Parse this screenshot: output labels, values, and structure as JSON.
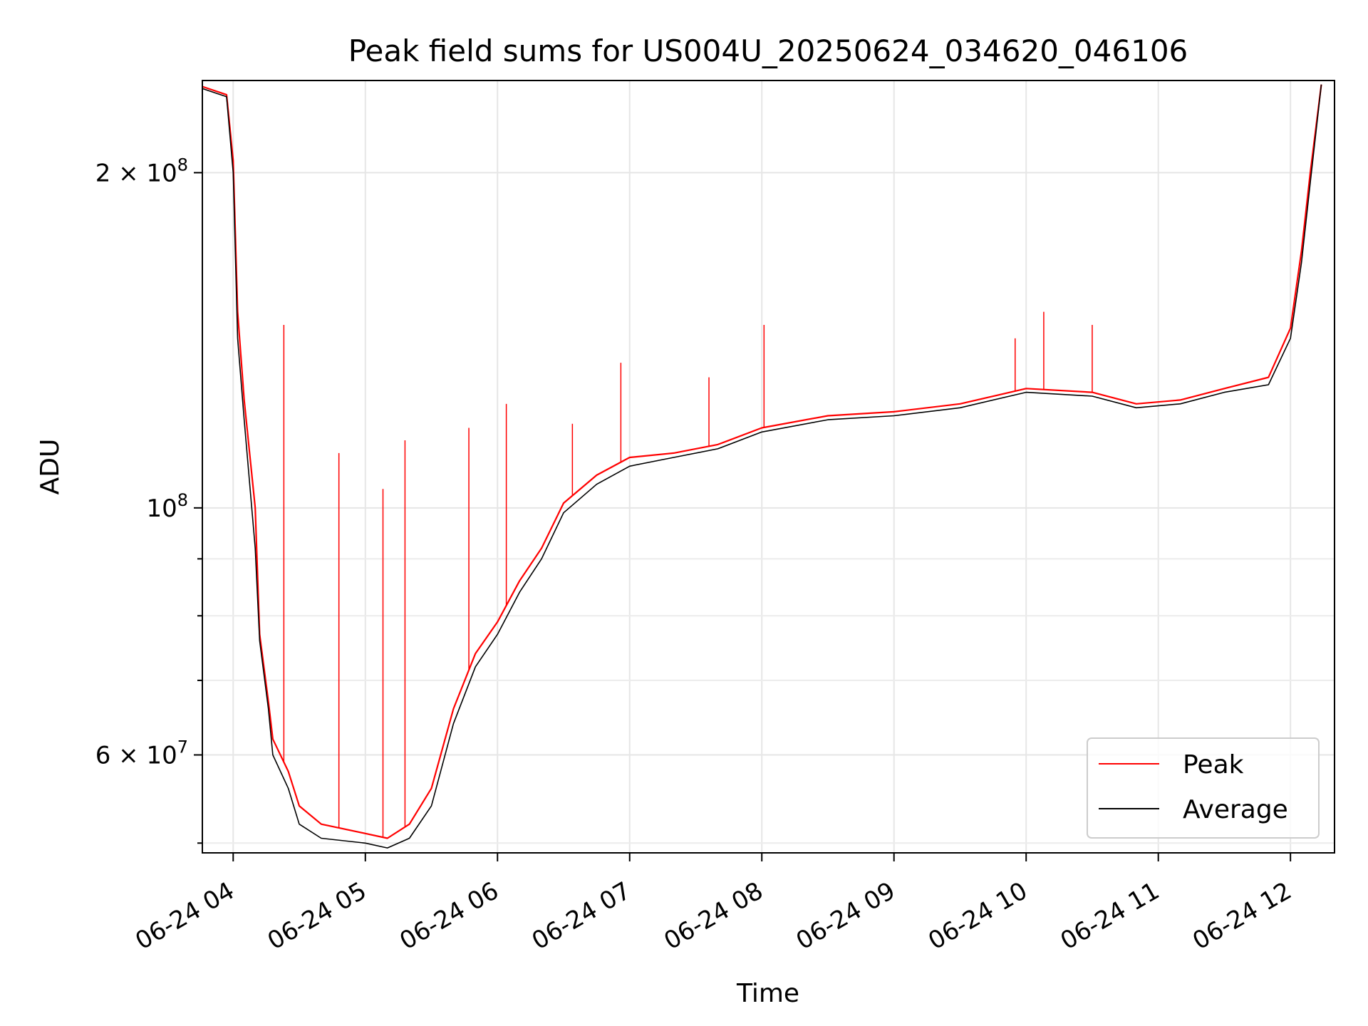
{
  "chart_data": {
    "type": "line",
    "title": "Peak field sums for US004U_20250624_034620_046106",
    "xlabel": "Time",
    "ylabel": "ADU",
    "x_scale": "time",
    "y_scale": "log",
    "xlim": [
      "2025-06-24 03:46",
      "2025-06-24 12:20"
    ],
    "ylim": [
      49000000,
      242000000
    ],
    "grid": true,
    "legend_position": "lower-right",
    "x_ticks": [
      {
        "value": "2025-06-24 04:00",
        "label": "06-24 04"
      },
      {
        "value": "2025-06-24 05:00",
        "label": "06-24 05"
      },
      {
        "value": "2025-06-24 06:00",
        "label": "06-24 06"
      },
      {
        "value": "2025-06-24 07:00",
        "label": "06-24 07"
      },
      {
        "value": "2025-06-24 08:00",
        "label": "06-24 08"
      },
      {
        "value": "2025-06-24 09:00",
        "label": "06-24 09"
      },
      {
        "value": "2025-06-24 10:00",
        "label": "06-24 10"
      },
      {
        "value": "2025-06-24 11:00",
        "label": "06-24 11"
      },
      {
        "value": "2025-06-24 12:00",
        "label": "06-24 12"
      }
    ],
    "y_ticks": [
      {
        "value": 60000000,
        "base": "6 × 10",
        "exp": "7"
      },
      {
        "value": 100000000,
        "base": "10",
        "exp": "8"
      },
      {
        "value": 200000000,
        "base": "2 × 10",
        "exp": "8"
      }
    ],
    "y_minor_ticks": [
      50000000,
      70000000,
      80000000,
      90000000
    ],
    "series": [
      {
        "name": "Peak",
        "color": "#ff0000",
        "points": [
          [
            "2025-06-24 03:46",
            239000000
          ],
          [
            "2025-06-24 03:57",
            235000000
          ],
          [
            "2025-06-24 04:00",
            205000000
          ],
          [
            "2025-06-24 04:02",
            150000000
          ],
          [
            "2025-06-24 04:05",
            125000000
          ],
          [
            "2025-06-24 04:10",
            100000000
          ],
          [
            "2025-06-24 04:12",
            77000000
          ],
          [
            "2025-06-24 04:16",
            67000000
          ],
          [
            "2025-06-24 04:18",
            62000000
          ],
          [
            "2025-06-24 04:25",
            58000000
          ],
          [
            "2025-06-24 04:30",
            54000000
          ],
          [
            "2025-06-24 04:40",
            52000000
          ],
          [
            "2025-06-24 05:00",
            51000000
          ],
          [
            "2025-06-24 05:10",
            50500000
          ],
          [
            "2025-06-24 05:20",
            52000000
          ],
          [
            "2025-06-24 05:30",
            56000000
          ],
          [
            "2025-06-24 05:40",
            66000000
          ],
          [
            "2025-06-24 05:50",
            74000000
          ],
          [
            "2025-06-24 06:00",
            79000000
          ],
          [
            "2025-06-24 06:10",
            86000000
          ],
          [
            "2025-06-24 06:20",
            92000000
          ],
          [
            "2025-06-24 06:30",
            101000000
          ],
          [
            "2025-06-24 06:45",
            107000000
          ],
          [
            "2025-06-24 07:00",
            111000000
          ],
          [
            "2025-06-24 07:20",
            112000000
          ],
          [
            "2025-06-24 07:40",
            114000000
          ],
          [
            "2025-06-24 08:00",
            118000000
          ],
          [
            "2025-06-24 08:30",
            121000000
          ],
          [
            "2025-06-24 09:00",
            122000000
          ],
          [
            "2025-06-24 09:30",
            124000000
          ],
          [
            "2025-06-24 10:00",
            128000000
          ],
          [
            "2025-06-24 10:30",
            127000000
          ],
          [
            "2025-06-24 10:50",
            124000000
          ],
          [
            "2025-06-24 11:10",
            125000000
          ],
          [
            "2025-06-24 11:30",
            128000000
          ],
          [
            "2025-06-24 11:50",
            131000000
          ],
          [
            "2025-06-24 12:00",
            145000000
          ],
          [
            "2025-06-24 12:05",
            170000000
          ],
          [
            "2025-06-24 12:09",
            200000000
          ],
          [
            "2025-06-24 12:14",
            240000000
          ]
        ],
        "spikes": [
          [
            "2025-06-24 04:23",
            146000000
          ],
          [
            "2025-06-24 04:48",
            112000000
          ],
          [
            "2025-06-24 05:08",
            104000000
          ],
          [
            "2025-06-24 05:18",
            115000000
          ],
          [
            "2025-06-24 05:47",
            118000000
          ],
          [
            "2025-06-24 06:04",
            124000000
          ],
          [
            "2025-06-24 06:34",
            119000000
          ],
          [
            "2025-06-24 06:56",
            135000000
          ],
          [
            "2025-06-24 07:36",
            131000000
          ],
          [
            "2025-06-24 08:01",
            146000000
          ],
          [
            "2025-06-24 09:55",
            142000000
          ],
          [
            "2025-06-24 10:08",
            150000000
          ],
          [
            "2025-06-24 10:30",
            146000000
          ]
        ]
      },
      {
        "name": "Average",
        "color": "#000000",
        "points": [
          [
            "2025-06-24 03:46",
            238000000
          ],
          [
            "2025-06-24 03:57",
            234000000
          ],
          [
            "2025-06-24 04:00",
            200000000
          ],
          [
            "2025-06-24 04:02",
            142000000
          ],
          [
            "2025-06-24 04:05",
            120000000
          ],
          [
            "2025-06-24 04:10",
            92000000
          ],
          [
            "2025-06-24 04:12",
            76000000
          ],
          [
            "2025-06-24 04:16",
            66000000
          ],
          [
            "2025-06-24 04:18",
            60000000
          ],
          [
            "2025-06-24 04:25",
            56000000
          ],
          [
            "2025-06-24 04:30",
            52000000
          ],
          [
            "2025-06-24 04:40",
            50500000
          ],
          [
            "2025-06-24 05:00",
            50000000
          ],
          [
            "2025-06-24 05:10",
            49500000
          ],
          [
            "2025-06-24 05:20",
            50500000
          ],
          [
            "2025-06-24 05:30",
            54000000
          ],
          [
            "2025-06-24 05:40",
            64000000
          ],
          [
            "2025-06-24 05:50",
            72000000
          ],
          [
            "2025-06-24 06:00",
            77000000
          ],
          [
            "2025-06-24 06:10",
            84000000
          ],
          [
            "2025-06-24 06:20",
            90000000
          ],
          [
            "2025-06-24 06:30",
            99000000
          ],
          [
            "2025-06-24 06:45",
            105000000
          ],
          [
            "2025-06-24 07:00",
            109000000
          ],
          [
            "2025-06-24 07:20",
            111000000
          ],
          [
            "2025-06-24 07:40",
            113000000
          ],
          [
            "2025-06-24 08:00",
            117000000
          ],
          [
            "2025-06-24 08:30",
            120000000
          ],
          [
            "2025-06-24 09:00",
            121000000
          ],
          [
            "2025-06-24 09:30",
            123000000
          ],
          [
            "2025-06-24 10:00",
            127000000
          ],
          [
            "2025-06-24 10:30",
            126000000
          ],
          [
            "2025-06-24 10:50",
            123000000
          ],
          [
            "2025-06-24 11:10",
            124000000
          ],
          [
            "2025-06-24 11:30",
            127000000
          ],
          [
            "2025-06-24 11:50",
            129000000
          ],
          [
            "2025-06-24 12:00",
            142000000
          ],
          [
            "2025-06-24 12:05",
            166000000
          ],
          [
            "2025-06-24 12:09",
            196000000
          ],
          [
            "2025-06-24 12:14",
            240000000
          ]
        ]
      }
    ]
  }
}
